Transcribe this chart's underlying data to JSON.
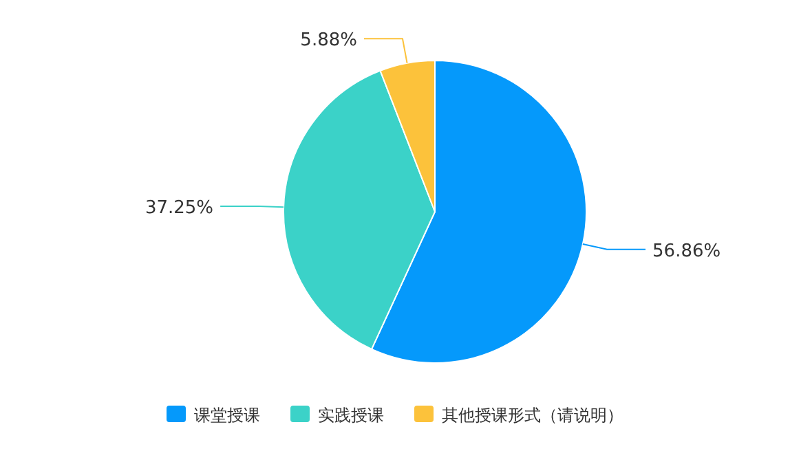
{
  "chart_data": {
    "type": "pie",
    "categories": [
      "课堂授课",
      "实践授课",
      "其他授课形式（请说明）"
    ],
    "values": [
      56.86,
      37.25,
      5.88
    ],
    "colors": [
      "#0599fb",
      "#3bd2c8",
      "#fcc23b"
    ],
    "value_labels": [
      "56.86%",
      "37.25%",
      "5.88%"
    ],
    "legend": "bottom"
  }
}
